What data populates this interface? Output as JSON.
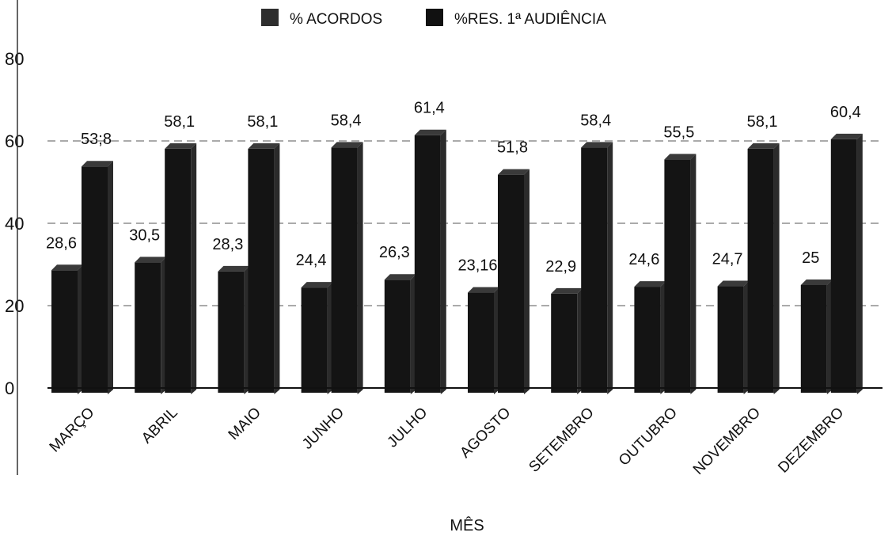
{
  "chart_data": {
    "type": "bar",
    "xlabel": "MÊS",
    "ylabel": "",
    "ylim": [
      0,
      80
    ],
    "yticks": [
      0,
      20,
      40,
      60,
      80
    ],
    "grid": true,
    "legend_position": "top",
    "categories": [
      "MARÇO",
      "ABRIL",
      "MAIO",
      "JUNHO",
      "JULHO",
      "AGOSTO",
      "SETEMBRO",
      "OUTUBRO",
      "NOVEMBRO",
      "DEZEMBRO"
    ],
    "series": [
      {
        "name": "% ACORDOS",
        "values": [
          28.6,
          30.5,
          28.3,
          24.4,
          26.3,
          23.16,
          22.9,
          24.6,
          24.7,
          25
        ],
        "labels": [
          "28,6",
          "30,5",
          "28,3",
          "24,4",
          "26,3",
          "23,16",
          "22,9",
          "24,6",
          "24,7",
          "25"
        ]
      },
      {
        "name": "%RES. 1ª AUDIÊNCIA",
        "values": [
          53.8,
          58.1,
          58.1,
          58.4,
          61.4,
          51.8,
          58.4,
          55.5,
          58.1,
          60.4
        ],
        "labels": [
          "53;8",
          "58,1",
          "58,1",
          "58,4",
          "61,4",
          "51,8",
          "58,4",
          "55,5",
          "58,1",
          "60,4"
        ]
      }
    ],
    "colors": {
      "bar_front": "#141414",
      "bar_side": "#2b2b2b",
      "bar_top": "#3a3a3a",
      "legend_1": "#2e2e2e",
      "legend_2": "#111111"
    }
  }
}
